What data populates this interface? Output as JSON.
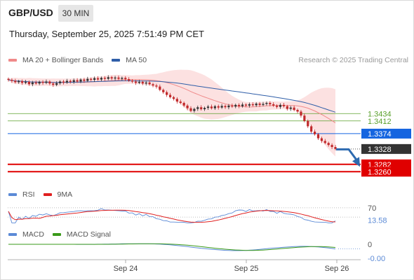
{
  "header": {
    "symbol": "GBP/USD",
    "timeframe": "30 MIN",
    "datetime": "Thursday, September 25, 2025 7:51:49 PM CET",
    "research": "Research © 2025 Trading Central"
  },
  "legends": {
    "main": [
      {
        "label": "MA 20 + Bollinger Bands",
        "color": "#f08a8a"
      },
      {
        "label": "MA 50",
        "color": "#2f5ea8"
      }
    ],
    "rsi": [
      {
        "label": "RSI",
        "color": "#5b8ad6"
      },
      {
        "label": "9MA",
        "color": "#e02020"
      }
    ],
    "macd": [
      {
        "label": "MACD",
        "color": "#5b8ad6"
      },
      {
        "label": "MACD Signal",
        "color": "#3a9a1a"
      }
    ]
  },
  "colors": {
    "resistance": "#5aa02c",
    "pivot": "#1565e0",
    "support": "#e00000",
    "last_price_bg": "#333333",
    "forecast_arrow": "#2d6ab0",
    "band_fill": "#fbd7d7",
    "bull_candle": "#333333",
    "bear_candle": "#c0282a"
  },
  "chart_data": {
    "type": "candlestick",
    "price_ylim": [
      1.3225,
      1.3575
    ],
    "levels": [
      {
        "value": 1.3434,
        "label": "1.3434",
        "kind": "resistance"
      },
      {
        "value": 1.3412,
        "label": "1.3412",
        "kind": "resistance"
      },
      {
        "value": 1.3374,
        "label": "1.3374",
        "kind": "pivot"
      },
      {
        "value": 1.3328,
        "label": "1.3328",
        "kind": "last"
      },
      {
        "value": 1.3282,
        "label": "1.3282",
        "kind": "support"
      },
      {
        "value": 1.326,
        "label": "1.3260",
        "kind": "support"
      }
    ],
    "x_ticks": [
      "Sep 24",
      "Sep 25",
      "Sep 26"
    ],
    "rsi": {
      "last": 13.58,
      "ref_label": "70",
      "last_label": "13.58",
      "ylim": [
        0,
        100
      ]
    },
    "macd": {
      "zero_label": "0",
      "last_label": "-0.00"
    },
    "closes": [
      1.3535,
      1.3532,
      1.3528,
      1.3531,
      1.3526,
      1.3529,
      1.3522,
      1.3527,
      1.3524,
      1.3529,
      1.3526,
      1.353,
      1.3524,
      1.352,
      1.3525,
      1.353,
      1.3527,
      1.3532,
      1.3529,
      1.3534,
      1.353,
      1.3536,
      1.3532,
      1.3538,
      1.3535,
      1.354,
      1.3536,
      1.3541,
      1.3538,
      1.3543,
      1.3539,
      1.3542,
      1.3538,
      1.3541,
      1.3537,
      1.3533,
      1.353,
      1.3526,
      1.3529,
      1.3524,
      1.3527,
      1.3522,
      1.3518,
      1.3515,
      1.3505,
      1.3498,
      1.349,
      1.3483,
      1.3478,
      1.347,
      1.3466,
      1.3458,
      1.345,
      1.3442,
      1.3448,
      1.3453,
      1.3447,
      1.3451,
      1.3455,
      1.345,
      1.3456,
      1.3452,
      1.3457,
      1.3453,
      1.3458,
      1.3455,
      1.346,
      1.3456,
      1.3461,
      1.3458,
      1.3462,
      1.3459,
      1.3464,
      1.346,
      1.3463,
      1.3466,
      1.3462,
      1.3458,
      1.3454,
      1.346,
      1.3456,
      1.3448,
      1.3452,
      1.3445,
      1.344,
      1.3428,
      1.3412,
      1.3396,
      1.338,
      1.3372,
      1.336,
      1.3352,
      1.3346,
      1.334,
      1.3334,
      1.3328
    ]
  }
}
